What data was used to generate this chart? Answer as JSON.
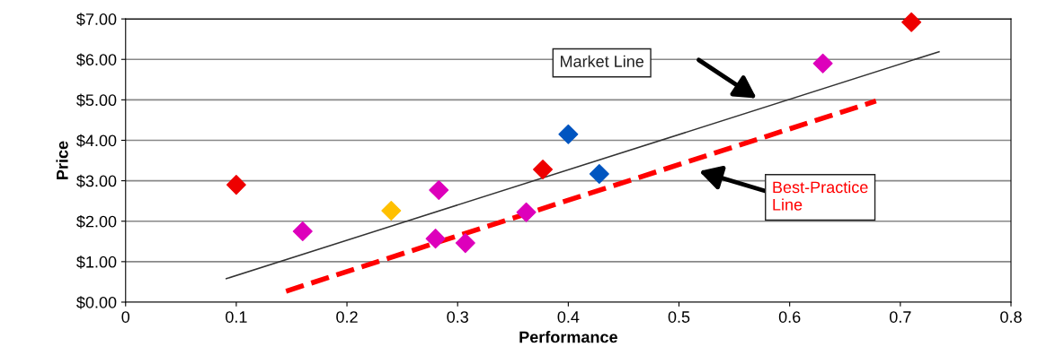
{
  "chart_data": {
    "type": "scatter",
    "xlabel": "Performance",
    "ylabel": "Price",
    "xlim": [
      0,
      0.8
    ],
    "xticks": [
      0,
      0.1,
      0.2,
      0.3,
      0.4,
      0.5,
      0.6,
      0.7,
      0.8
    ],
    "ylim": [
      0,
      7
    ],
    "yticks": [
      {
        "value": 0,
        "label": "$0.00"
      },
      {
        "value": 1,
        "label": "$1.00"
      },
      {
        "value": 2,
        "label": "$2.00"
      },
      {
        "value": 3,
        "label": "$3.00"
      },
      {
        "value": 4,
        "label": "$4.00"
      },
      {
        "value": 5,
        "label": "$5.00"
      },
      {
        "value": 6,
        "label": "$6.00"
      },
      {
        "value": 7,
        "label": "$7.00"
      }
    ],
    "grid": "y",
    "marker": "diamond",
    "series": [
      {
        "color": "#ee0000",
        "x": [
          0.1,
          0.377,
          0.71
        ],
        "values": [
          2.9,
          3.28,
          6.92
        ]
      },
      {
        "color": "#dd00bb",
        "x": [
          0.16,
          0.283,
          0.28,
          0.307,
          0.362,
          0.63
        ],
        "values": [
          1.75,
          2.77,
          1.57,
          1.46,
          2.22,
          5.9
        ]
      },
      {
        "color": "#ffc000",
        "x": [
          0.24
        ],
        "values": [
          2.26
        ]
      },
      {
        "color": "#0055c0",
        "x": [
          0.4,
          0.428
        ],
        "values": [
          4.15,
          3.17
        ]
      },
      {
        "type": "line",
        "color": "#333333",
        "marker": "none",
        "line_style": "solid",
        "x": [
          0.091,
          0.735
        ],
        "values": [
          0.58,
          6.19
        ]
      },
      {
        "type": "line",
        "color": "#ff0000",
        "marker": "none",
        "line_style": "dashed",
        "x": [
          0.145,
          0.678
        ],
        "values": [
          0.27,
          4.97
        ]
      }
    ],
    "annotations": [
      "Market Line",
      "Best-Practice\nLine"
    ]
  }
}
